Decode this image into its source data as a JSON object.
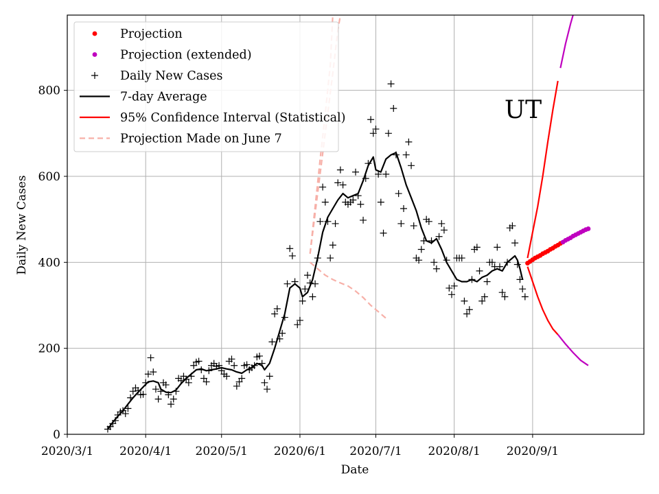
{
  "chart_data": {
    "type": "line",
    "title": "",
    "annotation": "UT",
    "xlabel": "Date",
    "ylabel": "Daily New Cases",
    "ylim": [
      0,
      975
    ],
    "xlim_day": [
      0,
      228
    ],
    "x_tick_days": [
      0,
      31,
      61,
      92,
      122,
      153,
      184
    ],
    "x_tick_labels": [
      "2020/3/1",
      "2020/4/1",
      "2020/5/1",
      "2020/6/1",
      "2020/7/1",
      "2020/8/1",
      "2020/9/1"
    ],
    "y_ticks": [
      0,
      200,
      400,
      600,
      800
    ],
    "y_tick_labels": [
      "0",
      "200",
      "400",
      "600",
      "800"
    ],
    "grid": true,
    "legend_position": "top-left",
    "legend": [
      {
        "label": "Projection",
        "kind": "dot",
        "color": "#ff0000"
      },
      {
        "label": "Projection (extended)",
        "kind": "dot",
        "color": "#bf00bf"
      },
      {
        "label": "Daily New Cases",
        "kind": "plus",
        "color": "#000000"
      },
      {
        "label": "7-day Average",
        "kind": "line",
        "color": "#000000"
      },
      {
        "label": "95% Confidence Interval (Statistical)",
        "kind": "line",
        "color": "#ff0000"
      },
      {
        "label": "Projection Made on June 7",
        "kind": "dashed",
        "color": "#f7b0a8"
      }
    ],
    "daily_cases": [
      [
        16,
        12
      ],
      [
        17,
        18
      ],
      [
        18,
        25
      ],
      [
        19,
        32
      ],
      [
        20,
        45
      ],
      [
        21,
        52
      ],
      [
        22,
        55
      ],
      [
        23,
        48
      ],
      [
        24,
        60
      ],
      [
        25,
        85
      ],
      [
        26,
        100
      ],
      [
        27,
        108
      ],
      [
        28,
        102
      ],
      [
        29,
        92
      ],
      [
        30,
        93
      ],
      [
        31,
        120
      ],
      [
        32,
        140
      ],
      [
        33,
        178
      ],
      [
        34,
        145
      ],
      [
        35,
        105
      ],
      [
        36,
        82
      ],
      [
        37,
        100
      ],
      [
        38,
        120
      ],
      [
        39,
        115
      ],
      [
        40,
        92
      ],
      [
        41,
        70
      ],
      [
        42,
        82
      ],
      [
        43,
        100
      ],
      [
        44,
        130
      ],
      [
        45,
        125
      ],
      [
        46,
        135
      ],
      [
        47,
        128
      ],
      [
        48,
        120
      ],
      [
        49,
        135
      ],
      [
        50,
        160
      ],
      [
        51,
        168
      ],
      [
        52,
        170
      ],
      [
        53,
        150
      ],
      [
        54,
        130
      ],
      [
        55,
        122
      ],
      [
        56,
        148
      ],
      [
        57,
        160
      ],
      [
        58,
        165
      ],
      [
        59,
        158
      ],
      [
        60,
        160
      ],
      [
        61,
        148
      ],
      [
        62,
        140
      ],
      [
        63,
        135
      ],
      [
        64,
        170
      ],
      [
        65,
        175
      ],
      [
        66,
        160
      ],
      [
        67,
        112
      ],
      [
        68,
        122
      ],
      [
        69,
        130
      ],
      [
        70,
        160
      ],
      [
        71,
        162
      ],
      [
        72,
        150
      ],
      [
        73,
        155
      ],
      [
        74,
        160
      ],
      [
        75,
        180
      ],
      [
        76,
        182
      ],
      [
        77,
        165
      ],
      [
        78,
        120
      ],
      [
        79,
        105
      ],
      [
        80,
        135
      ],
      [
        81,
        215
      ],
      [
        82,
        280
      ],
      [
        83,
        292
      ],
      [
        84,
        222
      ],
      [
        85,
        235
      ],
      [
        86,
        272
      ],
      [
        87,
        350
      ],
      [
        88,
        432
      ],
      [
        89,
        415
      ],
      [
        90,
        355
      ],
      [
        91,
        255
      ],
      [
        92,
        265
      ],
      [
        93,
        310
      ],
      [
        94,
        338
      ],
      [
        95,
        370
      ],
      [
        96,
        352
      ],
      [
        97,
        320
      ],
      [
        98,
        350
      ],
      [
        99,
        410
      ],
      [
        100,
        495
      ],
      [
        101,
        575
      ],
      [
        102,
        540
      ],
      [
        103,
        495
      ],
      [
        104,
        410
      ],
      [
        105,
        440
      ],
      [
        106,
        490
      ],
      [
        107,
        585
      ],
      [
        108,
        615
      ],
      [
        109,
        580
      ],
      [
        110,
        540
      ],
      [
        111,
        535
      ],
      [
        112,
        540
      ],
      [
        113,
        545
      ],
      [
        114,
        610
      ],
      [
        115,
        555
      ],
      [
        116,
        535
      ],
      [
        117,
        498
      ],
      [
        118,
        595
      ],
      [
        119,
        630
      ],
      [
        120,
        732
      ],
      [
        121,
        700
      ],
      [
        122,
        710
      ],
      [
        123,
        605
      ],
      [
        124,
        540
      ],
      [
        125,
        468
      ],
      [
        126,
        605
      ],
      [
        127,
        700
      ],
      [
        128,
        815
      ],
      [
        129,
        758
      ],
      [
        130,
        650
      ],
      [
        131,
        560
      ],
      [
        132,
        490
      ],
      [
        133,
        525
      ],
      [
        134,
        650
      ],
      [
        135,
        680
      ],
      [
        136,
        625
      ],
      [
        137,
        485
      ],
      [
        138,
        410
      ],
      [
        139,
        405
      ],
      [
        140,
        430
      ],
      [
        141,
        450
      ],
      [
        142,
        500
      ],
      [
        143,
        495
      ],
      [
        144,
        450
      ],
      [
        145,
        400
      ],
      [
        146,
        385
      ],
      [
        147,
        460
      ],
      [
        148,
        490
      ],
      [
        149,
        475
      ],
      [
        150,
        405
      ],
      [
        151,
        340
      ],
      [
        152,
        325
      ],
      [
        153,
        345
      ],
      [
        154,
        410
      ],
      [
        155,
        410
      ],
      [
        156,
        410
      ],
      [
        157,
        310
      ],
      [
        158,
        280
      ],
      [
        159,
        290
      ],
      [
        160,
        360
      ],
      [
        161,
        430
      ],
      [
        162,
        435
      ],
      [
        163,
        380
      ],
      [
        164,
        310
      ],
      [
        165,
        320
      ],
      [
        166,
        355
      ],
      [
        167,
        400
      ],
      [
        168,
        400
      ],
      [
        169,
        390
      ],
      [
        170,
        435
      ],
      [
        171,
        390
      ],
      [
        172,
        330
      ],
      [
        173,
        320
      ],
      [
        174,
        400
      ],
      [
        175,
        480
      ],
      [
        176,
        485
      ],
      [
        177,
        445
      ],
      [
        178,
        395
      ],
      [
        179,
        360
      ],
      [
        180,
        338
      ],
      [
        181,
        320
      ]
    ],
    "seven_day_average": [
      [
        16,
        12
      ],
      [
        18,
        28
      ],
      [
        20,
        42
      ],
      [
        22,
        55
      ],
      [
        24,
        70
      ],
      [
        26,
        85
      ],
      [
        28,
        98
      ],
      [
        30,
        110
      ],
      [
        32,
        122
      ],
      [
        34,
        124
      ],
      [
        36,
        120
      ],
      [
        37,
        105
      ],
      [
        39,
        98
      ],
      [
        41,
        97
      ],
      [
        43,
        103
      ],
      [
        45,
        118
      ],
      [
        47,
        130
      ],
      [
        49,
        140
      ],
      [
        51,
        150
      ],
      [
        53,
        152
      ],
      [
        55,
        148
      ],
      [
        57,
        150
      ],
      [
        59,
        152
      ],
      [
        61,
        155
      ],
      [
        63,
        152
      ],
      [
        65,
        150
      ],
      [
        67,
        145
      ],
      [
        69,
        142
      ],
      [
        71,
        150
      ],
      [
        73,
        155
      ],
      [
        75,
        165
      ],
      [
        77,
        160
      ],
      [
        78,
        150
      ],
      [
        80,
        165
      ],
      [
        82,
        200
      ],
      [
        84,
        240
      ],
      [
        86,
        280
      ],
      [
        88,
        340
      ],
      [
        90,
        350
      ],
      [
        92,
        340
      ],
      [
        93,
        320
      ],
      [
        95,
        330
      ],
      [
        97,
        360
      ],
      [
        99,
        410
      ],
      [
        101,
        470
      ],
      [
        103,
        505
      ],
      [
        105,
        525
      ],
      [
        107,
        545
      ],
      [
        109,
        560
      ],
      [
        111,
        550
      ],
      [
        113,
        555
      ],
      [
        115,
        560
      ],
      [
        117,
        590
      ],
      [
        119,
        625
      ],
      [
        121,
        645
      ],
      [
        122,
        615
      ],
      [
        124,
        610
      ],
      [
        126,
        640
      ],
      [
        128,
        650
      ],
      [
        130,
        655
      ],
      [
        132,
        620
      ],
      [
        134,
        580
      ],
      [
        136,
        550
      ],
      [
        138,
        520
      ],
      [
        140,
        480
      ],
      [
        142,
        450
      ],
      [
        144,
        445
      ],
      [
        146,
        455
      ],
      [
        148,
        430
      ],
      [
        150,
        400
      ],
      [
        152,
        380
      ],
      [
        154,
        360
      ],
      [
        156,
        355
      ],
      [
        158,
        355
      ],
      [
        160,
        360
      ],
      [
        162,
        355
      ],
      [
        164,
        365
      ],
      [
        166,
        370
      ],
      [
        168,
        380
      ],
      [
        170,
        385
      ],
      [
        172,
        380
      ],
      [
        174,
        400
      ],
      [
        176,
        410
      ],
      [
        177,
        415
      ],
      [
        178,
        405
      ],
      [
        179,
        385
      ],
      [
        180,
        360
      ]
    ],
    "projection": [
      [
        182,
        398
      ],
      [
        183,
        402
      ],
      [
        184,
        406
      ],
      [
        185,
        410
      ],
      [
        186,
        413
      ],
      [
        187,
        416
      ],
      [
        188,
        420
      ],
      [
        189,
        423
      ],
      [
        190,
        426
      ],
      [
        191,
        430
      ],
      [
        192,
        433
      ],
      [
        193,
        437
      ],
      [
        194,
        440
      ],
      [
        195,
        444
      ]
    ],
    "projection_extended": [
      [
        196,
        447
      ],
      [
        197,
        451
      ],
      [
        198,
        454
      ],
      [
        199,
        457
      ],
      [
        200,
        461
      ],
      [
        201,
        464
      ],
      [
        202,
        467
      ],
      [
        203,
        470
      ],
      [
        204,
        473
      ],
      [
        205,
        476
      ],
      [
        206,
        478
      ]
    ],
    "ci_upper": [
      [
        182,
        410
      ],
      [
        184,
        470
      ],
      [
        186,
        530
      ],
      [
        188,
        600
      ],
      [
        190,
        680
      ],
      [
        192,
        755
      ],
      [
        194,
        822
      ]
    ],
    "ci_upper_extended": [
      [
        195,
        852
      ],
      [
        197,
        908
      ],
      [
        199,
        955
      ],
      [
        200,
        975
      ]
    ],
    "ci_lower": [
      [
        182,
        390
      ],
      [
        184,
        355
      ],
      [
        186,
        320
      ],
      [
        188,
        290
      ],
      [
        190,
        265
      ],
      [
        192,
        245
      ],
      [
        194,
        232
      ]
    ],
    "ci_lower_extended": [
      [
        194,
        232
      ],
      [
        197,
        210
      ],
      [
        200,
        190
      ],
      [
        203,
        172
      ],
      [
        206,
        160
      ]
    ],
    "june7_upper": [
      [
        96,
        420
      ],
      [
        98,
        530
      ],
      [
        100,
        640
      ],
      [
        102,
        745
      ],
      [
        104,
        860
      ],
      [
        105,
        975
      ]
    ],
    "june7_middle": [
      [
        96,
        420
      ],
      [
        99,
        560
      ],
      [
        102,
        700
      ],
      [
        105,
        840
      ],
      [
        107,
        940
      ],
      [
        108,
        975
      ]
    ],
    "june7_lower": [
      [
        96,
        400
      ],
      [
        99,
        385
      ],
      [
        102,
        370
      ],
      [
        105,
        360
      ],
      [
        108,
        352
      ],
      [
        111,
        345
      ],
      [
        114,
        333
      ],
      [
        117,
        318
      ],
      [
        120,
        300
      ],
      [
        123,
        285
      ],
      [
        126,
        270
      ]
    ]
  }
}
